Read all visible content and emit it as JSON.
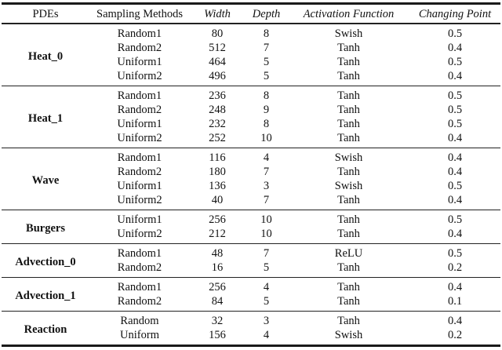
{
  "table": {
    "headers": [
      {
        "label": "PDEs"
      },
      {
        "label": "Sampling Methods"
      },
      {
        "label": "Width"
      },
      {
        "label": "Depth"
      },
      {
        "label": "Activation Function"
      },
      {
        "label": "Changing Point"
      }
    ],
    "groups": [
      {
        "pde": "Heat_0",
        "rows": [
          [
            "Random1",
            "80",
            "8",
            "Swish",
            "0.5"
          ],
          [
            "Random2",
            "512",
            "7",
            "Tanh",
            "0.4"
          ],
          [
            "Uniform1",
            "464",
            "5",
            "Tanh",
            "0.5"
          ],
          [
            "Uniform2",
            "496",
            "5",
            "Tanh",
            "0.4"
          ]
        ]
      },
      {
        "pde": "Heat_1",
        "rows": [
          [
            "Random1",
            "236",
            "8",
            "Tanh",
            "0.5"
          ],
          [
            "Random2",
            "248",
            "9",
            "Tanh",
            "0.5"
          ],
          [
            "Uniform1",
            "232",
            "8",
            "Tanh",
            "0.5"
          ],
          [
            "Uniform2",
            "252",
            "10",
            "Tanh",
            "0.4"
          ]
        ]
      },
      {
        "pde": "Wave",
        "rows": [
          [
            "Random1",
            "116",
            "4",
            "Swish",
            "0.4"
          ],
          [
            "Random2",
            "180",
            "7",
            "Tanh",
            "0.4"
          ],
          [
            "Uniform1",
            "136",
            "3",
            "Swish",
            "0.5"
          ],
          [
            "Uniform2",
            "40",
            "7",
            "Tanh",
            "0.4"
          ]
        ]
      },
      {
        "pde": "Burgers",
        "rows": [
          [
            "Uniform1",
            "256",
            "10",
            "Tanh",
            "0.5"
          ],
          [
            "Uniform2",
            "212",
            "10",
            "Tanh",
            "0.4"
          ]
        ]
      },
      {
        "pde": "Advection_0",
        "rows": [
          [
            "Random1",
            "48",
            "7",
            "ReLU",
            "0.5"
          ],
          [
            "Random2",
            "16",
            "5",
            "Tanh",
            "0.2"
          ]
        ]
      },
      {
        "pde": "Advection_1",
        "rows": [
          [
            "Random1",
            "256",
            "4",
            "Tanh",
            "0.4"
          ],
          [
            "Random2",
            "84",
            "5",
            "Tanh",
            "0.1"
          ]
        ]
      },
      {
        "pde": "Reaction",
        "rows": [
          [
            "Random",
            "32",
            "3",
            "Tanh",
            "0.4"
          ],
          [
            "Uniform",
            "156",
            "4",
            "Swish",
            "0.2"
          ]
        ]
      }
    ]
  }
}
